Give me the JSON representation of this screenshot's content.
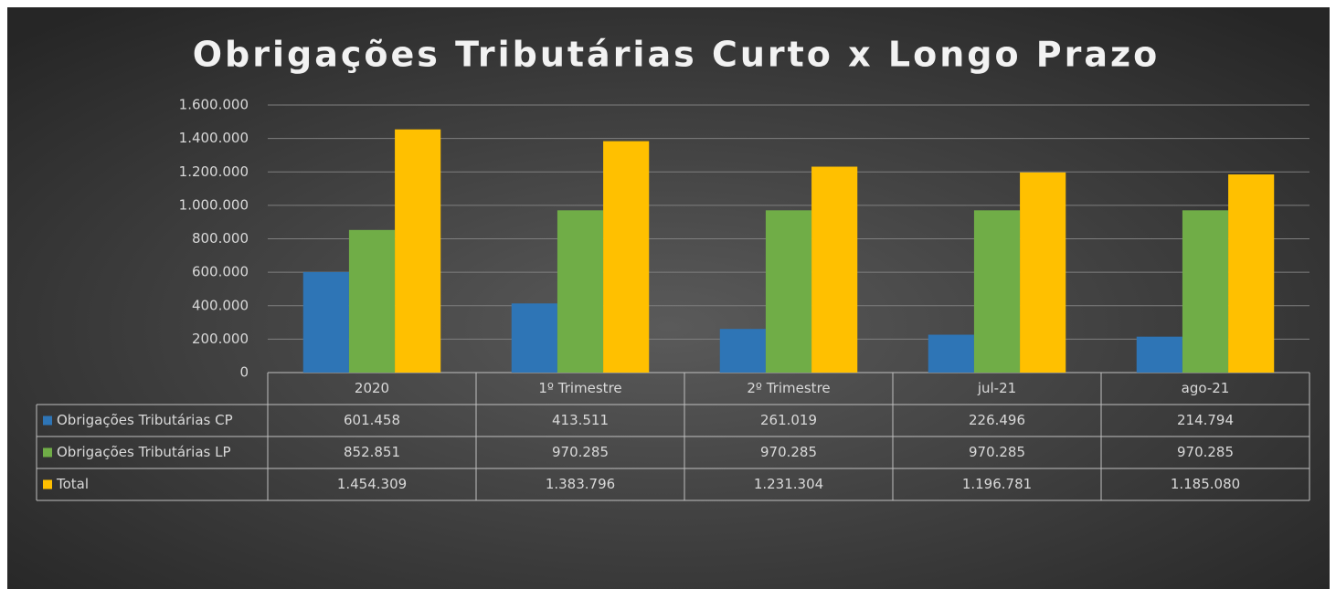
{
  "chart_data": {
    "type": "bar",
    "title": "Obrigações Tributárias Curto x Longo Prazo",
    "categories": [
      "2020",
      "1º Trimestre",
      "2º Trimestre",
      "jul-21",
      "ago-21"
    ],
    "series": [
      {
        "name": "Obrigações Tributárias CP",
        "color": "#2e75b6",
        "values": [
          601458,
          413511,
          261019,
          226496,
          214794
        ],
        "value_labels": [
          "601.458",
          "413.511",
          "261.019",
          "226.496",
          "214.794"
        ]
      },
      {
        "name": "Obrigações Tributárias LP",
        "color": "#70ad47",
        "values": [
          852851,
          970285,
          970285,
          970285,
          970285
        ],
        "value_labels": [
          "852.851",
          "970.285",
          "970.285",
          "970.285",
          "970.285"
        ]
      },
      {
        "name": "Total",
        "color": "#ffc000",
        "values": [
          1454309,
          1383796,
          1231304,
          1196781,
          1185080
        ],
        "value_labels": [
          "1.454.309",
          "1.383.796",
          "1.231.304",
          "1.196.781",
          "1.185.080"
        ]
      }
    ],
    "ylim": [
      0,
      1600000
    ],
    "yticks": [
      0,
      {
        "value": 200000,
        "label": "200.000"
      },
      {
        "value": 400000,
        "label": "400.000"
      },
      {
        "value": 600000,
        "label": "600.000"
      },
      {
        "value": 800000,
        "label": "800.000"
      },
      {
        "value": 1000000,
        "label": "1.000.000"
      },
      {
        "value": 1200000,
        "label": "1.200.000"
      },
      {
        "value": 1400000,
        "label": "1.400.000"
      },
      {
        "value": 1600000,
        "label": "1.600.000"
      }
    ],
    "grid": true
  }
}
